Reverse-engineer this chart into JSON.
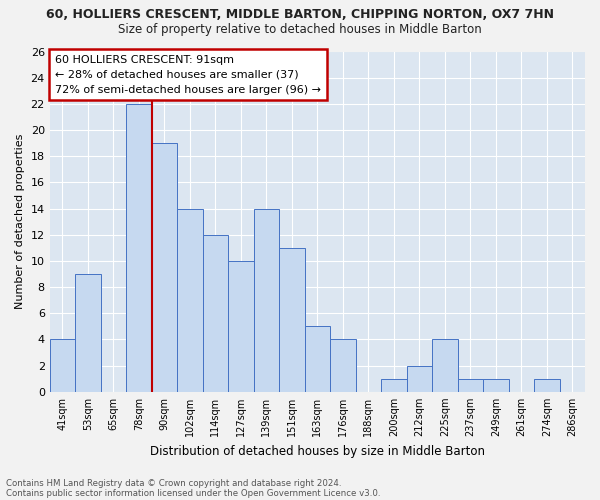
{
  "title": "60, HOLLIERS CRESCENT, MIDDLE BARTON, CHIPPING NORTON, OX7 7HN",
  "subtitle": "Size of property relative to detached houses in Middle Barton",
  "xlabel": "Distribution of detached houses by size in Middle Barton",
  "ylabel": "Number of detached properties",
  "footnote1": "Contains HM Land Registry data © Crown copyright and database right 2024.",
  "footnote2": "Contains public sector information licensed under the Open Government Licence v3.0.",
  "annotation_line1": "60 HOLLIERS CRESCENT: 91sqm",
  "annotation_line2": "← 28% of detached houses are smaller (37)",
  "annotation_line3": "72% of semi-detached houses are larger (96) →",
  "bar_labels": [
    "41sqm",
    "53sqm",
    "65sqm",
    "78sqm",
    "90sqm",
    "102sqm",
    "114sqm",
    "127sqm",
    "139sqm",
    "151sqm",
    "163sqm",
    "176sqm",
    "188sqm",
    "200sqm",
    "212sqm",
    "225sqm",
    "237sqm",
    "249sqm",
    "261sqm",
    "274sqm",
    "286sqm"
  ],
  "bar_values": [
    4,
    9,
    0,
    22,
    19,
    14,
    12,
    10,
    14,
    11,
    5,
    4,
    0,
    1,
    2,
    4,
    1,
    1,
    0,
    1,
    0
  ],
  "bar_color": "#c6d9f0",
  "bar_edge_color": "#4472c4",
  "highlight_line_x_label": "90sqm",
  "highlight_line_color": "#c00000",
  "box_edge_color": "#c00000",
  "ylim": [
    0,
    26
  ],
  "yticks": [
    0,
    2,
    4,
    6,
    8,
    10,
    12,
    14,
    16,
    18,
    20,
    22,
    24,
    26
  ],
  "bg_color": "#dce6f1",
  "grid_color": "#ffffff",
  "fig_bg_color": "#f2f2f2"
}
